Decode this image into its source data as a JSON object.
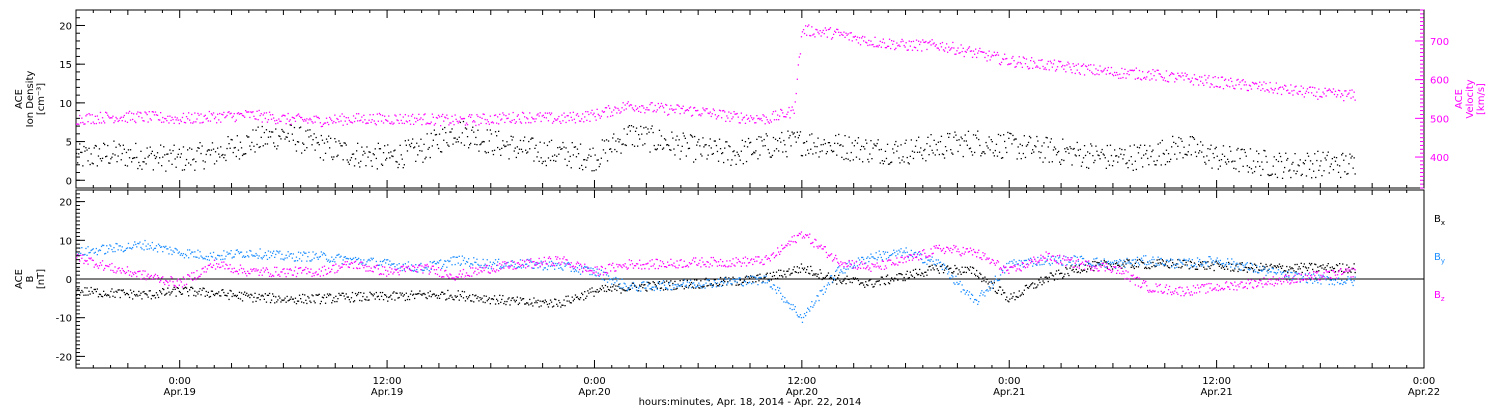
{
  "colors": {
    "black": "#000000",
    "magenta": "#ff00ff",
    "blue": "#1f8fff"
  },
  "x_axis": {
    "title": "hours:minutes, Apr. 18, 2014 - Apr. 22, 2014",
    "ticks": [
      {
        "time": "0:00",
        "date": "Apr.19",
        "t": 24
      },
      {
        "time": "12:00",
        "date": "Apr.19",
        "t": 36
      },
      {
        "time": "0:00",
        "date": "Apr.20",
        "t": 48
      },
      {
        "time": "12:00",
        "date": "Apr.20",
        "t": 60
      },
      {
        "time": "0:00",
        "date": "Apr.21",
        "t": 72
      },
      {
        "time": "12:00",
        "date": "Apr.21",
        "t": 84
      },
      {
        "time": "0:00",
        "date": "Apr.22",
        "t": 96
      }
    ],
    "range_hours_from_apr18": [
      18,
      96
    ]
  },
  "chart_data": [
    {
      "type": "scatter",
      "panel": "top",
      "left_axis": {
        "label_lines": [
          "ACE",
          "Ion Density",
          "[cm⁻³]"
        ],
        "ylim": [
          -1,
          22
        ],
        "ticks": [
          "0",
          "5",
          "10",
          "15",
          "20"
        ]
      },
      "right_axis": {
        "label_lines": [
          "ACE",
          "Velocity",
          "[km/s]"
        ],
        "ylim": [
          320,
          780
        ],
        "ticks": [
          "400",
          "500",
          "600",
          "700"
        ]
      },
      "series": [
        {
          "color": "#000000",
          "axis": "left",
          "points": [
            [
              18,
              3
            ],
            [
              20,
              3.5
            ],
            [
              22,
              3.2
            ],
            [
              24,
              2.8
            ],
            [
              26,
              3.5
            ],
            [
              28,
              5
            ],
            [
              30,
              6
            ],
            [
              32,
              4.5
            ],
            [
              34,
              3.5
            ],
            [
              36,
              3
            ],
            [
              38,
              4
            ],
            [
              40,
              6.5
            ],
            [
              42,
              5
            ],
            [
              44,
              4
            ],
            [
              46,
              3.5
            ],
            [
              48,
              3
            ],
            [
              50,
              6
            ],
            [
              52,
              5
            ],
            [
              54,
              4
            ],
            [
              56,
              3.5
            ],
            [
              58,
              4.5
            ],
            [
              60,
              5
            ],
            [
              62,
              4.5
            ],
            [
              64,
              4
            ],
            [
              66,
              3.8
            ],
            [
              68,
              4.5
            ],
            [
              70,
              5
            ],
            [
              72,
              4.5
            ],
            [
              74,
              4
            ],
            [
              76,
              3.5
            ],
            [
              78,
              3
            ],
            [
              80,
              3.2
            ],
            [
              82,
              4.5
            ],
            [
              84,
              3
            ],
            [
              86,
              2.5
            ],
            [
              88,
              2
            ],
            [
              90,
              2.2
            ],
            [
              92,
              2
            ]
          ]
        },
        {
          "color": "#ff00ff",
          "axis": "right",
          "points": [
            [
              18,
              500
            ],
            [
              20,
              505
            ],
            [
              22,
              505
            ],
            [
              24,
              500
            ],
            [
              26,
              505
            ],
            [
              28,
              510
            ],
            [
              30,
              500
            ],
            [
              32,
              495
            ],
            [
              34,
              500
            ],
            [
              36,
              500
            ],
            [
              38,
              500
            ],
            [
              40,
              495
            ],
            [
              42,
              500
            ],
            [
              44,
              505
            ],
            [
              46,
              500
            ],
            [
              48,
              510
            ],
            [
              50,
              535
            ],
            [
              52,
              525
            ],
            [
              54,
              520
            ],
            [
              56,
              505
            ],
            [
              58,
              500
            ],
            [
              59.5,
              520
            ],
            [
              60,
              730
            ],
            [
              62,
              720
            ],
            [
              64,
              700
            ],
            [
              66,
              690
            ],
            [
              68,
              690
            ],
            [
              70,
              670
            ],
            [
              72,
              650
            ],
            [
              74,
              640
            ],
            [
              76,
              630
            ],
            [
              78,
              620
            ],
            [
              80,
              615
            ],
            [
              82,
              605
            ],
            [
              84,
              595
            ],
            [
              86,
              585
            ],
            [
              88,
              575
            ],
            [
              90,
              565
            ],
            [
              92,
              560
            ]
          ]
        }
      ]
    },
    {
      "type": "scatter",
      "panel": "bottom",
      "left_axis": {
        "label_lines": [
          "ACE",
          "B",
          "[nT]"
        ],
        "ylim": [
          -23,
          23
        ],
        "ticks": [
          "-20",
          "-10",
          "0",
          "10",
          "20"
        ]
      },
      "series": [
        {
          "name": "Bₓ",
          "color": "#000000",
          "points": [
            [
              18,
              -3
            ],
            [
              20,
              -3.5
            ],
            [
              22,
              -4
            ],
            [
              24,
              -3
            ],
            [
              26,
              -3.5
            ],
            [
              28,
              -4.5
            ],
            [
              30,
              -5
            ],
            [
              32,
              -5
            ],
            [
              34,
              -4.5
            ],
            [
              36,
              -4.5
            ],
            [
              38,
              -4
            ],
            [
              40,
              -4
            ],
            [
              42,
              -5
            ],
            [
              44,
              -6
            ],
            [
              46,
              -6
            ],
            [
              48,
              -3
            ],
            [
              50,
              -2
            ],
            [
              52,
              -1.5
            ],
            [
              54,
              -1
            ],
            [
              56,
              -0.5
            ],
            [
              58,
              0.5
            ],
            [
              60,
              3
            ],
            [
              62,
              0
            ],
            [
              64,
              -1
            ],
            [
              66,
              1
            ],
            [
              68,
              3
            ],
            [
              70,
              2
            ],
            [
              72,
              -5
            ],
            [
              74,
              0
            ],
            [
              76,
              3
            ],
            [
              78,
              4
            ],
            [
              80,
              4
            ],
            [
              82,
              4
            ],
            [
              84,
              3.5
            ],
            [
              86,
              3
            ],
            [
              88,
              3
            ],
            [
              90,
              3
            ],
            [
              92,
              3
            ]
          ]
        },
        {
          "name": "Bᵧ",
          "color": "#1f8fff",
          "points": [
            [
              18,
              7
            ],
            [
              20,
              8
            ],
            [
              22,
              9
            ],
            [
              24,
              7
            ],
            [
              26,
              6
            ],
            [
              28,
              7
            ],
            [
              30,
              6
            ],
            [
              32,
              6
            ],
            [
              34,
              5
            ],
            [
              36,
              4
            ],
            [
              38,
              3
            ],
            [
              40,
              5
            ],
            [
              42,
              4
            ],
            [
              44,
              4
            ],
            [
              46,
              3.5
            ],
            [
              48,
              2
            ],
            [
              50,
              -2
            ],
            [
              52,
              -1.5
            ],
            [
              54,
              -1
            ],
            [
              56,
              -0.5
            ],
            [
              58,
              0
            ],
            [
              60,
              -10
            ],
            [
              62,
              2
            ],
            [
              64,
              6
            ],
            [
              66,
              7
            ],
            [
              68,
              4
            ],
            [
              70,
              -6
            ],
            [
              72,
              4
            ],
            [
              74,
              5
            ],
            [
              76,
              5
            ],
            [
              78,
              4
            ],
            [
              80,
              5
            ],
            [
              82,
              4
            ],
            [
              84,
              5
            ],
            [
              86,
              3
            ],
            [
              88,
              1
            ],
            [
              90,
              0
            ],
            [
              92,
              -0.5
            ]
          ]
        },
        {
          "name": "Bᵩ",
          "color": "#ff00ff",
          "points": [
            [
              18,
              6
            ],
            [
              20,
              3
            ],
            [
              22,
              1
            ],
            [
              24,
              -1
            ],
            [
              26,
              4
            ],
            [
              28,
              2
            ],
            [
              30,
              2
            ],
            [
              32,
              2
            ],
            [
              34,
              4
            ],
            [
              36,
              2
            ],
            [
              38,
              3
            ],
            [
              40,
              1
            ],
            [
              42,
              3
            ],
            [
              44,
              4
            ],
            [
              46,
              5
            ],
            [
              48,
              2
            ],
            [
              50,
              4
            ],
            [
              52,
              4
            ],
            [
              54,
              4.5
            ],
            [
              56,
              4.5
            ],
            [
              58,
              5
            ],
            [
              60,
              12
            ],
            [
              62,
              5
            ],
            [
              64,
              3
            ],
            [
              66,
              5
            ],
            [
              68,
              8
            ],
            [
              70,
              7
            ],
            [
              72,
              2
            ],
            [
              74,
              6
            ],
            [
              76,
              4
            ],
            [
              78,
              3
            ],
            [
              80,
              -2
            ],
            [
              82,
              -3
            ],
            [
              84,
              -2
            ],
            [
              86,
              -1
            ],
            [
              88,
              0
            ],
            [
              90,
              1
            ],
            [
              92,
              2
            ]
          ]
        }
      ],
      "legend": [
        {
          "text": "B",
          "sub": "x",
          "color": "#000000"
        },
        {
          "text": "B",
          "sub": "y",
          "color": "#1f8fff"
        },
        {
          "text": "B",
          "sub": "z",
          "color": "#ff00ff"
        }
      ]
    }
  ]
}
